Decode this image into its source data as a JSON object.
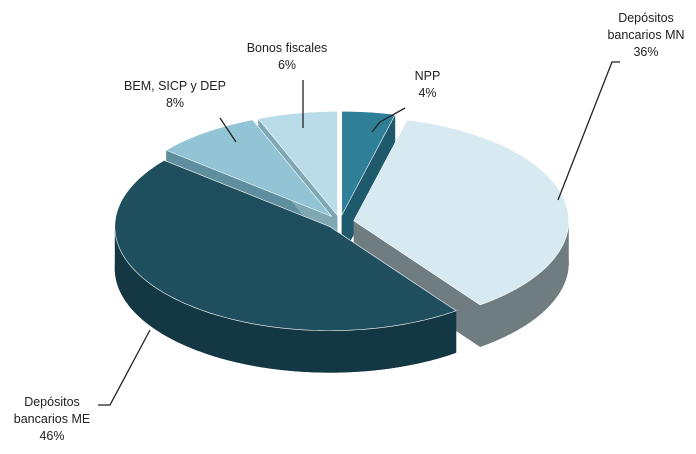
{
  "chart_data": {
    "type": "pie",
    "categories": [
      "NPP",
      "Depósitos bancarios MN",
      "Depósitos bancarios ME",
      "BEM, SICP y DEP",
      "Bonos fiscales"
    ],
    "values": [
      4,
      36,
      46,
      8,
      6
    ],
    "value_labels": [
      "4%",
      "36%",
      "46%",
      "8%",
      "6%"
    ],
    "colors": [
      "#2f7f99",
      "#d7eaf2",
      "#1f4f5f",
      "#92c4d5",
      "#b9dce8"
    ],
    "side_colors": [
      "#1f5a6c",
      "#6f7c80",
      "#143843",
      "#5f8f9f",
      "#7fa8b5"
    ]
  }
}
